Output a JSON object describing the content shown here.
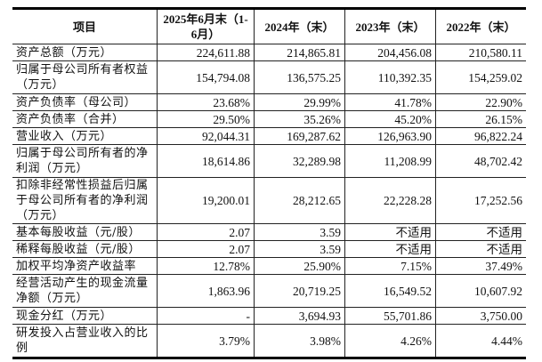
{
  "headers": [
    "项目",
    "2025年6月末（1-6月）",
    "2024年（末）",
    "2023年（末）",
    "2022年（末）"
  ],
  "rows": [
    {
      "label": "资产总额（万元）",
      "values": [
        "224,611.88",
        "214,865.81",
        "204,456.08",
        "210,580.11"
      ]
    },
    {
      "label": "归属于母公司所有者权益（万元）",
      "values": [
        "154,794.08",
        "136,575.25",
        "110,392.35",
        "154,259.02"
      ]
    },
    {
      "label": "资产负债率（母公司）",
      "values": [
        "23.68%",
        "29.99%",
        "41.78%",
        "22.90%"
      ]
    },
    {
      "label": "资产负债率（合并）",
      "values": [
        "29.50%",
        "35.26%",
        "45.20%",
        "26.15%"
      ]
    },
    {
      "label": "营业收入（万元）",
      "values": [
        "92,044.31",
        "169,287.62",
        "126,963.90",
        "96,822.24"
      ]
    },
    {
      "label": "归属于母公司所有者的净利润（万元）",
      "values": [
        "18,614.86",
        "32,289.98",
        "11,208.99",
        "48,702.42"
      ]
    },
    {
      "label": "扣除非经常性损益后归属于母公司所有者的净利润（万元）",
      "values": [
        "19,200.01",
        "28,212.65",
        "22,228.28",
        "17,252.56"
      ]
    },
    {
      "label": "基本每股收益（元/股）",
      "values": [
        "2.07",
        "3.59",
        "不适用",
        "不适用"
      ]
    },
    {
      "label": "稀释每股收益（元/股）",
      "values": [
        "2.07",
        "3.59",
        "不适用",
        "不适用"
      ]
    },
    {
      "label": "加权平均净资产收益率",
      "values": [
        "12.78%",
        "25.90%",
        "7.15%",
        "37.49%"
      ]
    },
    {
      "label": "经营活动产生的现金流量净额（万元）",
      "values": [
        "1,863.96",
        "20,719.25",
        "16,549.52",
        "10,607.92"
      ]
    },
    {
      "label": "现金分红（万元）",
      "values": [
        "-",
        "3,694.93",
        "55,701.86",
        "3,750.00"
      ]
    },
    {
      "label": "研发投入占营业收入的比例",
      "values": [
        "3.79%",
        "3.98%",
        "4.26%",
        "4.44%"
      ]
    }
  ]
}
